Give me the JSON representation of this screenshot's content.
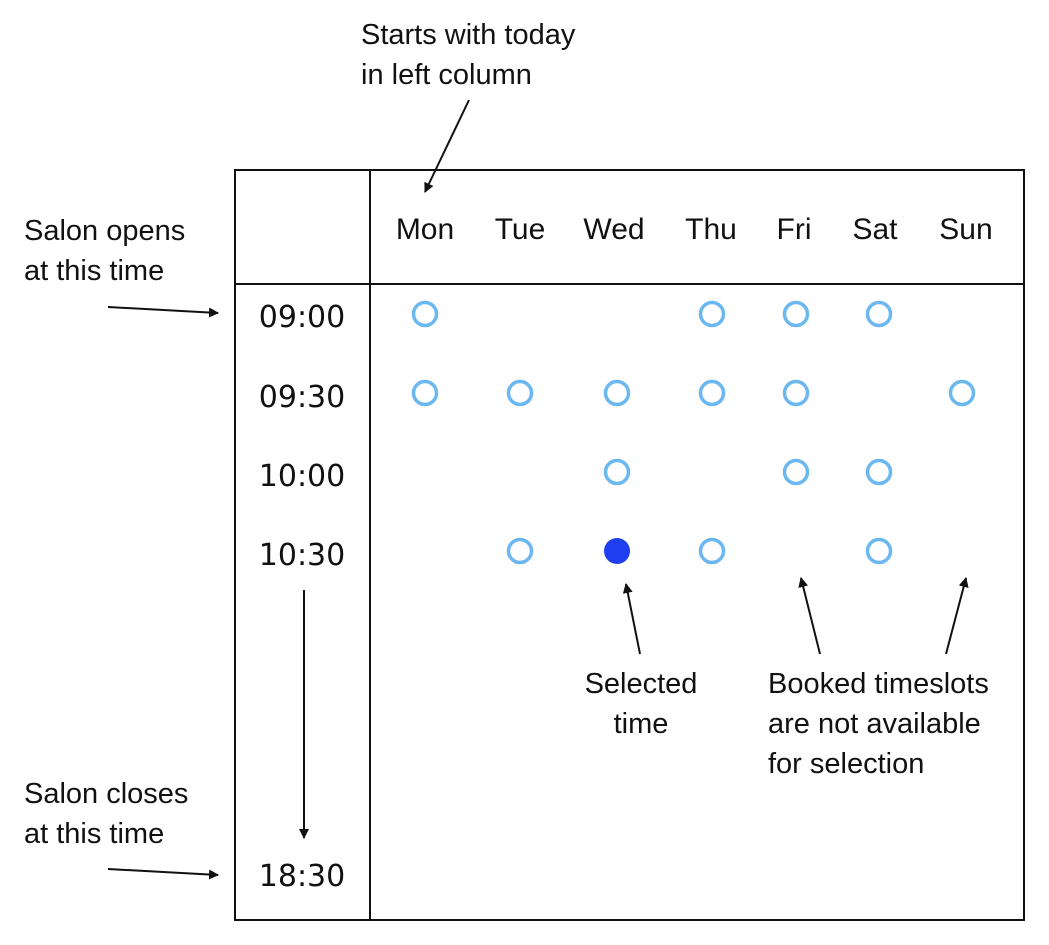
{
  "annotations": {
    "starts_today": [
      "Starts with today",
      "in left column"
    ],
    "salon_opens": [
      "Salon opens",
      "at this time"
    ],
    "salon_closes": [
      "Salon closes",
      "at this time"
    ],
    "selected_time": [
      "Selected",
      "time"
    ],
    "booked_timeslots": [
      "Booked timeslots",
      "are not available",
      "for selection"
    ]
  },
  "days": [
    "Mon",
    "Tue",
    "Wed",
    "Thu",
    "Fri",
    "Sat",
    "Sun"
  ],
  "times": [
    "09:00",
    "09:30",
    "10:00",
    "10:30"
  ],
  "closing_time": "18:30",
  "slots": [
    [
      "available",
      "none",
      "none",
      "available",
      "available",
      "available",
      "none"
    ],
    [
      "available",
      "available",
      "available",
      "available",
      "available",
      "none",
      "available"
    ],
    [
      "none",
      "none",
      "available",
      "none",
      "available",
      "available",
      "none"
    ],
    [
      "none",
      "available",
      "selected",
      "available",
      "none",
      "available",
      "none"
    ]
  ],
  "colors": {
    "available_ring": "#6bb8f0",
    "selected_fill": "#1f3ff0",
    "line": "#111111"
  },
  "icons": {
    "available": "open-circle",
    "selected": "filled-circle"
  }
}
